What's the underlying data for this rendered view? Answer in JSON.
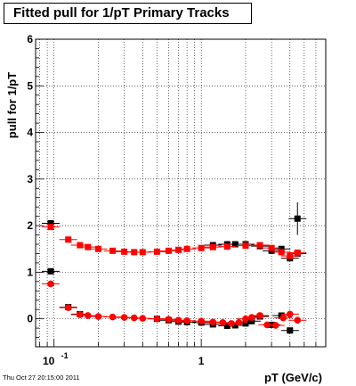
{
  "chart_data": {
    "type": "scatter",
    "title": "Fitted pull for 1/pT  Primary Tracks",
    "xlabel": "pT (GeV/c)",
    "ylabel": "pull for 1/pT",
    "xscale": "log",
    "xlim": [
      0.075,
      7.0
    ],
    "ylim": [
      -0.6,
      6.0
    ],
    "yticks": [
      "0",
      "1",
      "2",
      "3",
      "4",
      "5",
      "6"
    ],
    "xticks": [
      {
        "value": 0.1,
        "base": "10",
        "exp": "-1"
      },
      {
        "value": 1,
        "label": "1"
      }
    ],
    "grid": true,
    "series": [
      {
        "color": "#000000",
        "marker": "square",
        "points": [
          [
            0.095,
            2.05
          ],
          [
            0.095,
            1.02
          ],
          [
            0.125,
            0.25
          ],
          [
            0.15,
            0.1
          ],
          [
            0.5,
            0.0
          ],
          [
            0.6,
            -0.03
          ],
          [
            0.7,
            -0.06
          ],
          [
            0.8,
            -0.07
          ],
          [
            1.0,
            -0.08
          ],
          [
            1.2,
            -0.12
          ],
          [
            1.5,
            -0.15
          ],
          [
            1.7,
            -0.14
          ],
          [
            2.0,
            -0.1
          ],
          [
            2.2,
            -0.05
          ],
          [
            2.5,
            0.05
          ],
          [
            3.0,
            -0.13
          ],
          [
            3.5,
            0.07
          ],
          [
            4.0,
            -0.25
          ],
          [
            4.5,
            2.15
          ],
          [
            1.2,
            1.58
          ],
          [
            1.5,
            1.6
          ],
          [
            1.7,
            1.6
          ],
          [
            2.0,
            1.6
          ],
          [
            2.5,
            1.56
          ],
          [
            3.0,
            1.46
          ],
          [
            3.5,
            1.5
          ],
          [
            4.0,
            1.3
          ],
          [
            4.5,
            1.4
          ]
        ]
      },
      {
        "color": "#ff0000",
        "marker": "circle",
        "points": [
          [
            0.095,
            0.75
          ],
          [
            0.125,
            0.24
          ],
          [
            0.15,
            0.09
          ],
          [
            0.17,
            0.07
          ],
          [
            0.2,
            0.05
          ],
          [
            0.25,
            0.04
          ],
          [
            0.3,
            0.03
          ],
          [
            0.35,
            0.02
          ],
          [
            0.4,
            0.01
          ],
          [
            0.5,
            0.0
          ],
          [
            0.6,
            -0.01
          ],
          [
            0.7,
            -0.03
          ],
          [
            0.8,
            -0.04
          ],
          [
            1.0,
            -0.05
          ],
          [
            1.2,
            -0.07
          ],
          [
            1.4,
            -0.08
          ],
          [
            1.6,
            -0.1
          ],
          [
            1.8,
            -0.08
          ],
          [
            2.0,
            0.0
          ],
          [
            2.2,
            0.03
          ],
          [
            2.5,
            0.07
          ],
          [
            2.8,
            -0.13
          ],
          [
            3.2,
            -0.14
          ],
          [
            3.6,
            0.02
          ],
          [
            4.0,
            0.1
          ],
          [
            4.5,
            -0.03
          ]
        ]
      },
      {
        "color": "#ff0000",
        "marker": "square",
        "points": [
          [
            0.095,
            1.97
          ],
          [
            0.125,
            1.7
          ],
          [
            0.15,
            1.58
          ],
          [
            0.17,
            1.54
          ],
          [
            0.2,
            1.5
          ],
          [
            0.25,
            1.46
          ],
          [
            0.3,
            1.44
          ],
          [
            0.35,
            1.43
          ],
          [
            0.4,
            1.43
          ],
          [
            0.5,
            1.44
          ],
          [
            0.6,
            1.46
          ],
          [
            0.7,
            1.48
          ],
          [
            0.8,
            1.5
          ],
          [
            1.0,
            1.52
          ],
          [
            1.2,
            1.54
          ],
          [
            1.5,
            1.55
          ],
          [
            2.0,
            1.57
          ],
          [
            2.5,
            1.58
          ],
          [
            3.0,
            1.52
          ],
          [
            3.5,
            1.43
          ],
          [
            4.0,
            1.35
          ],
          [
            4.5,
            1.42
          ]
        ]
      }
    ],
    "timestamp": "Thu Oct 27 20:15:00 2011"
  }
}
